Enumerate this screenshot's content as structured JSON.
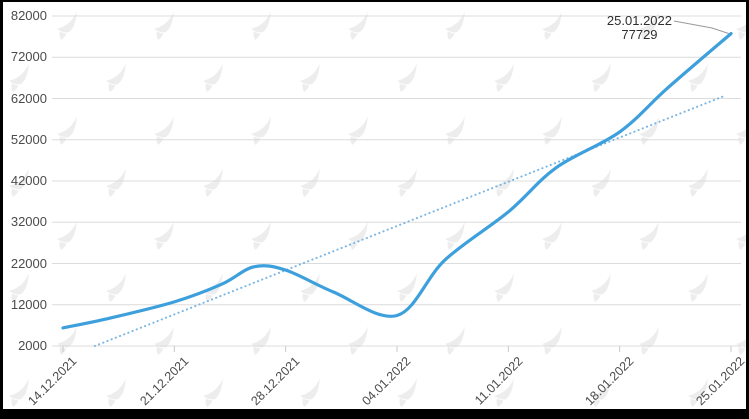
{
  "chart_data": {
    "type": "line",
    "title": "",
    "xlabel": "",
    "ylabel": "",
    "ylim": [
      2000,
      82000
    ],
    "yticks": [
      82000,
      72000,
      62000,
      52000,
      42000,
      32000,
      22000,
      12000,
      2000
    ],
    "x_ticks": [
      {
        "label": "14.12.2021",
        "day": 0
      },
      {
        "label": "21.12.2021",
        "day": 7
      },
      {
        "label": "28.12.2021",
        "day": 14
      },
      {
        "label": "04.01.2022",
        "day": 21
      },
      {
        "label": "11.01.2022",
        "day": 28
      },
      {
        "label": "18.01.2022",
        "day": 35
      },
      {
        "label": "25.01.2022",
        "day": 42
      }
    ],
    "grid": "horizontal",
    "legend": "none",
    "series": [
      {
        "name": "value",
        "style": "solid",
        "color": "#3da0dc",
        "points": [
          {
            "date": "14.12.2021",
            "day": 0,
            "value": 6400
          },
          {
            "date": "17.12.2021",
            "day": 3,
            "value": 8800
          },
          {
            "date": "21.12.2021",
            "day": 7,
            "value": 12700
          },
          {
            "date": "24.12.2021",
            "day": 10,
            "value": 17000
          },
          {
            "date": "26.12.2021",
            "day": 12,
            "value": 21200
          },
          {
            "date": "28.12.2021",
            "day": 14,
            "value": 20400
          },
          {
            "date": "31.12.2021",
            "day": 17,
            "value": 15100
          },
          {
            "date": "04.01.2022",
            "day": 21,
            "value": 9400
          },
          {
            "date": "07.01.2022",
            "day": 24,
            "value": 22800
          },
          {
            "date": "11.01.2022",
            "day": 28,
            "value": 34500
          },
          {
            "date": "14.01.2022",
            "day": 31,
            "value": 45200
          },
          {
            "date": "18.01.2022",
            "day": 35,
            "value": 53900
          },
          {
            "date": "21.01.2022",
            "day": 38,
            "value": 64500
          },
          {
            "date": "25.01.2022",
            "day": 42,
            "value": 77729
          }
        ]
      },
      {
        "name": "trend",
        "style": "dotted",
        "color": "#7ab5e3",
        "points": [
          {
            "date": "16.12.2021",
            "day": 2,
            "value": 2000
          },
          {
            "date": "25.01.2022",
            "day": 41.7,
            "value": 62800
          }
        ]
      }
    ],
    "annotation": {
      "date": "25.01.2022",
      "value": "77729"
    }
  },
  "watermark": {
    "icon": "forklog-logo-icon",
    "color": "#ededed"
  },
  "colors": {
    "frame": "#000000",
    "background": "#ffffff",
    "gridline": "#dcdcdc",
    "axis": "#c8c8c8",
    "tick_label": "#4b4b4b",
    "annotation_text": "#2f2f2f",
    "connector": "#9a9a9a"
  }
}
